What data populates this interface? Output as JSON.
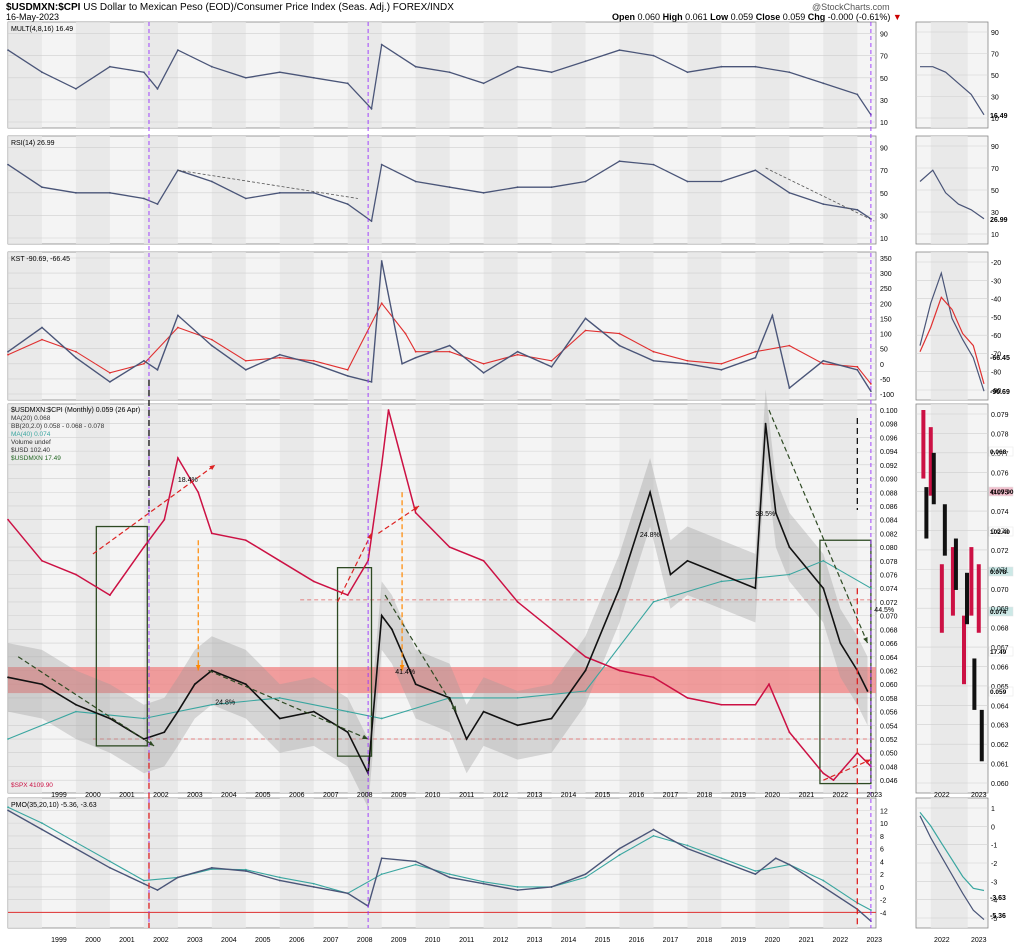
{
  "header": {
    "symbol": "$USDMXN:$CPI",
    "description": "US Dollar to Mexican Peso (EOD)/Consumer Price Index (Seas. Adj.) FOREX/INDX",
    "watermark": "@StockCharts.com",
    "date": "16-May-2023",
    "open_label": "Open",
    "open": "0.060",
    "high_label": "High",
    "high": "0.061",
    "low_label": "Low",
    "low": "0.059",
    "close_label": "Close",
    "close": "0.059",
    "chg_label": "Chg",
    "chg": "-0.000 (-0.61%)"
  },
  "colors": {
    "price_line": "#111111",
    "spx": "#cc1144",
    "ma": "#3aa6a0",
    "indicator": "#4a5578",
    "signal": "#e03030",
    "shade": "#e6e6e6",
    "band": "#f08080",
    "vline": "#9933ff",
    "frame": "#2e4a23",
    "arrow_black": "#000000",
    "arrow_red": "#dd2222",
    "arrow_orange": "#ff8800",
    "arrow_green": "#2e4a23"
  },
  "chart_data": [
    {
      "type": "line",
      "panel": "MULT",
      "legend": "MULT(4,8,16) 16.49",
      "ylim": [
        10,
        95
      ],
      "yticks": [
        "90",
        "70",
        "50",
        "30",
        "10"
      ],
      "yticks_side": [
        "90",
        "70",
        "50",
        "30",
        "10"
      ],
      "value_badge": "16.49",
      "x": [
        1998.0,
        1999.0,
        2000.0,
        2001.0,
        2002.0,
        2002.4,
        2003.0,
        2004.0,
        2005.0,
        2006.0,
        2007.0,
        2008.0,
        2008.7,
        2009.0,
        2010.0,
        2011.0,
        2012.0,
        2013.0,
        2014.0,
        2015.0,
        2016.0,
        2017.0,
        2018.0,
        2019.0,
        2020.0,
        2021.0,
        2022.0,
        2023.0,
        2023.4
      ],
      "y": [
        75,
        55,
        40,
        60,
        55,
        40,
        75,
        60,
        50,
        55,
        50,
        45,
        22,
        80,
        60,
        55,
        45,
        60,
        55,
        65,
        75,
        70,
        55,
        60,
        60,
        55,
        45,
        35,
        16.49
      ]
    },
    {
      "type": "line",
      "panel": "RSI",
      "legend": "RSI(14) 26.99",
      "ylim": [
        10,
        95
      ],
      "yticks": [
        "90",
        "70",
        "50",
        "30",
        "10"
      ],
      "yticks_side": [
        "90",
        "70",
        "50",
        "30",
        "10"
      ],
      "value_badge": "26.99",
      "x": [
        1998.0,
        1999.0,
        2000.0,
        2001.0,
        2002.0,
        2002.4,
        2003.0,
        2004.0,
        2005.0,
        2006.0,
        2007.0,
        2008.0,
        2008.7,
        2009.0,
        2010.0,
        2011.0,
        2012.0,
        2013.0,
        2014.0,
        2015.0,
        2016.0,
        2017.0,
        2018.0,
        2019.0,
        2020.0,
        2021.0,
        2022.0,
        2023.0,
        2023.4
      ],
      "y": [
        75,
        55,
        50,
        50,
        45,
        40,
        70,
        60,
        45,
        50,
        50,
        40,
        25,
        75,
        60,
        55,
        50,
        55,
        55,
        60,
        78,
        75,
        60,
        60,
        70,
        50,
        40,
        35,
        26.99
      ]
    },
    {
      "type": "line",
      "panel": "KST",
      "legend": "KST -90.69, -66.45",
      "ylim": [
        -100,
        350
      ],
      "yticks": [
        "350",
        "300",
        "250",
        "200",
        "150",
        "100",
        "50",
        "0",
        "-50",
        "-100"
      ],
      "yticks_side": [
        "-20",
        "-30",
        "-40",
        "-50",
        "-60",
        "-70",
        "-80",
        "-90"
      ],
      "value_badges": [
        "-66.45",
        "-90.69"
      ],
      "series": [
        {
          "name": "KST",
          "x": [
            1998.0,
            1999.0,
            2000.0,
            2001.0,
            2002.0,
            2002.4,
            2003.0,
            2004.0,
            2005.0,
            2006.0,
            2007.0,
            2008.0,
            2008.7,
            2009.0,
            2009.6,
            2010.0,
            2011.0,
            2012.0,
            2013.0,
            2014.0,
            2015.0,
            2016.0,
            2017.0,
            2018.0,
            2019.0,
            2020.0,
            2020.5,
            2021.0,
            2022.0,
            2023.0,
            2023.4
          ],
          "y": [
            40,
            120,
            20,
            -60,
            10,
            -20,
            160,
            60,
            -20,
            30,
            0,
            -40,
            -60,
            340,
            0,
            20,
            60,
            -30,
            40,
            -10,
            150,
            60,
            10,
            0,
            -20,
            20,
            160,
            -80,
            10,
            -20,
            -90.69
          ]
        },
        {
          "name": "Signal",
          "x": [
            1998.0,
            1999.0,
            2000.0,
            2001.0,
            2002.0,
            2003.0,
            2004.0,
            2005.0,
            2006.0,
            2007.0,
            2008.0,
            2009.0,
            2009.7,
            2010.0,
            2011.0,
            2012.0,
            2013.0,
            2014.0,
            2015.0,
            2016.0,
            2017.0,
            2018.0,
            2019.0,
            2020.0,
            2021.0,
            2022.0,
            2023.0,
            2023.4
          ],
          "y": [
            30,
            80,
            40,
            -30,
            0,
            120,
            80,
            10,
            20,
            10,
            -20,
            200,
            100,
            40,
            40,
            0,
            30,
            10,
            110,
            100,
            40,
            10,
            0,
            40,
            60,
            0,
            -10,
            -66.45
          ]
        }
      ]
    },
    {
      "type": "line",
      "panel": "main",
      "title": "$USDMXN:$CPI (Monthly) 0.059 (26 Apr)",
      "legend_entries": [
        "MA(20) 0.068",
        "BB(20,2.0) 0.058 - 0.068 - 0.078",
        "MA(40) 0.074",
        "Volume undef",
        "$USD 102.40",
        "$USDMXN 17.49",
        "$SPX 4109.90"
      ],
      "annotations": [
        "18.4%",
        "24.8%",
        "41.4%",
        "24.8%",
        "38.5%",
        "44.5%"
      ],
      "ylim": [
        0.045,
        0.1
      ],
      "yticks": [
        "0.100",
        "0.098",
        "0.096",
        "0.094",
        "0.092",
        "0.090",
        "0.088",
        "0.086",
        "0.084",
        "0.082",
        "0.080",
        "0.078",
        "0.076",
        "0.074",
        "0.072",
        "0.070",
        "0.068",
        "0.066",
        "0.064",
        "0.062",
        "0.060",
        "0.058",
        "0.056",
        "0.054",
        "0.052",
        "0.050",
        "0.048",
        "0.046"
      ],
      "yticks_side": [
        "0.079",
        "0.078",
        "0.077",
        "0.076",
        "0.075",
        "0.074",
        "0.073",
        "0.072",
        "0.071",
        "0.070",
        "0.069",
        "0.068",
        "0.067",
        "0.066",
        "0.065",
        "0.064",
        "0.063",
        "0.062",
        "0.061",
        "0.060"
      ],
      "badges": [
        "0.068",
        "4109.90",
        "102.40",
        "0.078",
        "0.074",
        "17.49",
        "0.059"
      ],
      "series": [
        {
          "name": "$USDMXN:$CPI",
          "x": [
            1998.0,
            1999.0,
            2000.0,
            2001.0,
            2002.0,
            2002.6,
            2003.0,
            2003.5,
            2004.0,
            2005.0,
            2006.0,
            2007.0,
            2008.0,
            2008.6,
            2009.0,
            2009.3,
            2010.0,
            2011.0,
            2011.5,
            2012.0,
            2013.0,
            2014.0,
            2015.0,
            2016.0,
            2016.9,
            2017.5,
            2018.0,
            2019.0,
            2020.0,
            2020.3,
            2020.6,
            2021.0,
            2022.0,
            2022.5,
            2023.0,
            2023.3
          ],
          "y": [
            0.061,
            0.06,
            0.057,
            0.055,
            0.052,
            0.053,
            0.056,
            0.06,
            0.062,
            0.06,
            0.055,
            0.056,
            0.053,
            0.047,
            0.07,
            0.068,
            0.06,
            0.058,
            0.052,
            0.056,
            0.054,
            0.055,
            0.062,
            0.074,
            0.088,
            0.076,
            0.078,
            0.076,
            0.074,
            0.098,
            0.085,
            0.08,
            0.074,
            0.066,
            0.062,
            0.059
          ]
        },
        {
          "name": "$SPX",
          "x": [
            1998.0,
            1999.0,
            2000.0,
            2001.0,
            2002.0,
            2002.6,
            2003.0,
            2003.6,
            2004.0,
            2005.0,
            2006.0,
            2007.0,
            2008.0,
            2008.6,
            2009.0,
            2009.2,
            2010.0,
            2011.0,
            2012.0,
            2013.0,
            2014.0,
            2015.0,
            2016.0,
            2017.0,
            2018.0,
            2019.0,
            2020.0,
            2020.4,
            2021.0,
            2022.0,
            2022.3,
            2023.0,
            2023.4
          ],
          "y": [
            0.084,
            0.078,
            0.076,
            0.073,
            0.08,
            0.084,
            0.093,
            0.088,
            0.082,
            0.081,
            0.078,
            0.075,
            0.073,
            0.078,
            0.092,
            0.1,
            0.085,
            0.08,
            0.078,
            0.072,
            0.068,
            0.064,
            0.062,
            0.061,
            0.058,
            0.057,
            0.057,
            0.06,
            0.053,
            0.047,
            0.046,
            0.05,
            0.048
          ]
        },
        {
          "name": "MA(40)",
          "x": [
            1998.0,
            2000.0,
            2002.0,
            2004.0,
            2006.0,
            2008.0,
            2009.0,
            2011.0,
            2013.0,
            2015.0,
            2017.0,
            2019.0,
            2021.0,
            2022.0,
            2023.4
          ],
          "y": [
            0.052,
            0.056,
            0.055,
            0.057,
            0.058,
            0.056,
            0.055,
            0.058,
            0.058,
            0.059,
            0.072,
            0.075,
            0.076,
            0.078,
            0.074
          ]
        }
      ]
    },
    {
      "type": "line",
      "panel": "PMO",
      "legend": "PMO(35,20,10) -5.36, -3.63",
      "ylim": [
        -5.5,
        13
      ],
      "yticks": [
        "12",
        "10",
        "8",
        "6",
        "4",
        "2",
        "0",
        "-2",
        "-4"
      ],
      "yticks_side": [
        "1",
        "0",
        "-1",
        "-2",
        "-3",
        "-4",
        "-5"
      ],
      "value_badges": [
        "-3.63",
        "-5.36"
      ],
      "series": [
        {
          "name": "PMO",
          "x": [
            1998.0,
            1999.0,
            2000.0,
            2001.0,
            2002.0,
            2002.4,
            2003.0,
            2004.0,
            2005.0,
            2006.0,
            2007.0,
            2008.0,
            2008.6,
            2009.0,
            2010.0,
            2011.0,
            2012.0,
            2013.0,
            2014.0,
            2015.0,
            2016.0,
            2017.0,
            2018.0,
            2019.0,
            2020.0,
            2020.6,
            2021.0,
            2022.0,
            2023.0,
            2023.4
          ],
          "y": [
            12,
            9,
            6,
            3,
            0.5,
            -0.5,
            1.5,
            3,
            2.5,
            1,
            0,
            -1,
            -3,
            4.5,
            4,
            1.5,
            0.5,
            -0.5,
            0,
            2,
            6,
            9,
            6,
            4,
            2,
            4.5,
            3.5,
            0,
            -3.5,
            -5.36
          ]
        },
        {
          "name": "Signal",
          "x": [
            1998.0,
            1999.0,
            2000.0,
            2001.0,
            2002.0,
            2003.0,
            2004.0,
            2005.0,
            2006.0,
            2007.0,
            2008.0,
            2009.0,
            2010.0,
            2011.0,
            2012.0,
            2013.0,
            2014.0,
            2015.0,
            2016.0,
            2017.0,
            2018.0,
            2019.0,
            2020.0,
            2021.0,
            2022.0,
            2023.0,
            2023.4
          ],
          "y": [
            12.5,
            10,
            7,
            4,
            1,
            1.5,
            2.8,
            2.7,
            1.5,
            0.5,
            -1,
            2,
            3.5,
            2,
            0.8,
            0,
            0,
            1.5,
            5,
            8,
            6.5,
            4.5,
            2.5,
            3.5,
            1,
            -2.5,
            -3.63
          ]
        }
      ]
    },
    {
      "type": "bar",
      "panel": "side",
      "categories": [
        "2022",
        "2023"
      ],
      "series": [
        {
          "name": "$USDMXN:$CPI",
          "x": [
            2021.8,
            2022.0,
            2022.3,
            2022.6,
            2022.9,
            2023.1,
            2023.3
          ],
          "y": [
            0.074,
            0.076,
            0.073,
            0.071,
            0.069,
            0.064,
            0.061
          ]
        },
        {
          "name": "$SPX",
          "x": [
            2021.8,
            2022.0,
            2022.3,
            2022.6,
            2022.9,
            2023.1,
            2023.3
          ],
          "y": [
            0.078,
            0.077,
            0.069,
            0.07,
            0.066,
            0.07,
            0.069
          ]
        }
      ]
    }
  ],
  "x_axis": {
    "main_years": [
      "1999",
      "2000",
      "2001",
      "2002",
      "2003",
      "2004",
      "2005",
      "2006",
      "2007",
      "2008",
      "2009",
      "2010",
      "2011",
      "2012",
      "2013",
      "2014",
      "2015",
      "2016",
      "2017",
      "2018",
      "2019",
      "2020",
      "2021",
      "2022",
      "2023"
    ],
    "side_years": [
      "2022",
      "2023"
    ]
  }
}
